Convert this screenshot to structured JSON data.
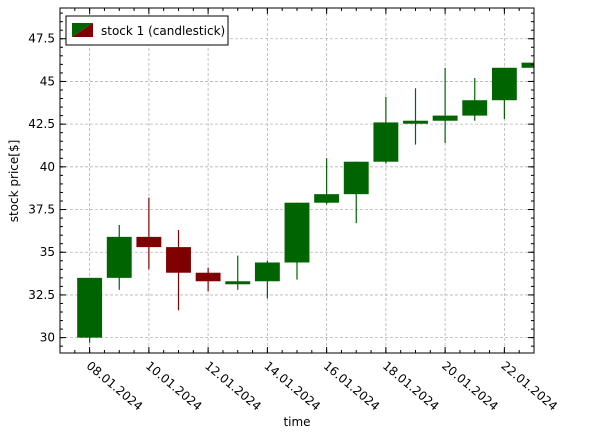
{
  "colors": {
    "up": "#006400",
    "down": "#800000",
    "grid": "#b4b4b4",
    "axis": "#000000",
    "background": "#ffffff"
  },
  "chart_data": {
    "type": "candlestick",
    "xlabel": "time",
    "ylabel": "stock price[$]",
    "ylim": [
      29.1,
      49.3
    ],
    "yticks": [
      30,
      32.5,
      35,
      37.5,
      40,
      42.5,
      45,
      47.5
    ],
    "ytick_labels": [
      "30",
      "32.5",
      "35",
      "37.5",
      "40",
      "42.5",
      "45",
      "47.5"
    ],
    "xlim": [
      "07.01.2024",
      "23.01.2024"
    ],
    "xticks": [
      "08.01.2024",
      "10.01.2024",
      "12.01.2024",
      "14.01.2024",
      "16.01.2024",
      "18.01.2024",
      "20.01.2024",
      "22.01.2024"
    ],
    "grid": true,
    "legend": {
      "position": "top-left",
      "entries": [
        "stock 1 (candlestick)"
      ]
    },
    "series": [
      {
        "name": "stock 1 (candlestick)",
        "candles": [
          {
            "date": "08.01.2024",
            "open": 30.0,
            "high": 33.5,
            "low": 29.7,
            "close": 33.5
          },
          {
            "date": "09.01.2024",
            "open": 33.5,
            "high": 36.6,
            "low": 32.8,
            "close": 35.9
          },
          {
            "date": "10.01.2024",
            "open": 35.9,
            "high": 38.2,
            "low": 34.0,
            "close": 35.3
          },
          {
            "date": "11.01.2024",
            "open": 35.3,
            "high": 36.3,
            "low": 31.6,
            "close": 33.8
          },
          {
            "date": "12.01.2024",
            "open": 33.8,
            "high": 34.1,
            "low": 32.7,
            "close": 33.3
          },
          {
            "date": "13.01.2024",
            "open": 33.2,
            "high": 34.8,
            "low": 32.8,
            "close": 33.3
          },
          {
            "date": "14.01.2024",
            "open": 33.3,
            "high": 34.5,
            "low": 32.3,
            "close": 34.4
          },
          {
            "date": "15.01.2024",
            "open": 34.4,
            "high": 37.9,
            "low": 33.4,
            "close": 37.9
          },
          {
            "date": "16.01.2024",
            "open": 37.9,
            "high": 40.5,
            "low": 37.8,
            "close": 38.4
          },
          {
            "date": "17.01.2024",
            "open": 38.4,
            "high": 40.3,
            "low": 36.7,
            "close": 40.3
          },
          {
            "date": "18.01.2024",
            "open": 40.3,
            "high": 44.1,
            "low": 40.2,
            "close": 42.6
          },
          {
            "date": "19.01.2024",
            "open": 42.6,
            "high": 44.6,
            "low": 41.3,
            "close": 42.7
          },
          {
            "date": "20.01.2024",
            "open": 42.7,
            "high": 45.8,
            "low": 41.4,
            "close": 43.0
          },
          {
            "date": "21.01.2024",
            "open": 43.0,
            "high": 45.2,
            "low": 42.7,
            "close": 43.9
          },
          {
            "date": "22.01.2024",
            "open": 43.9,
            "high": 45.8,
            "low": 42.8,
            "close": 45.8
          },
          {
            "date": "23.01.2024",
            "open": 45.8,
            "high": 46.2,
            "low": 45.7,
            "close": 46.1
          }
        ]
      }
    ]
  }
}
